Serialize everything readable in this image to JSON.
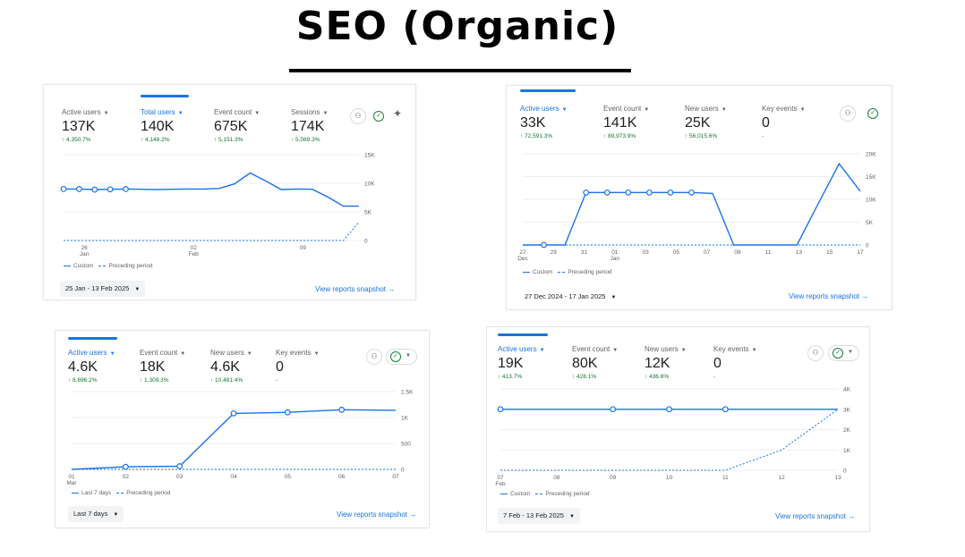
{
  "page": {
    "title": "SEO (Organic)"
  },
  "colors": {
    "accent": "#1a73e8",
    "positive": "#137333",
    "grid": "#e0e0e0"
  },
  "chart_data": [
    {
      "type": "line",
      "metrics": [
        {
          "label": "Active users",
          "value": "137K",
          "change": "↑ 4,350.7%"
        },
        {
          "label": "Total users",
          "value": "140K",
          "change": "↑ 4,148.2%"
        },
        {
          "label": "Event count",
          "value": "675K",
          "change": "↑ 5,151.3%"
        },
        {
          "label": "Sessions",
          "value": "174K",
          "change": "↑ 5,089.3%"
        }
      ],
      "active_metric": "Total users",
      "ylim": [
        0,
        15000
      ],
      "y_ticks": [
        "15K",
        "10K",
        "5K",
        "0"
      ],
      "x_ticks": [
        {
          "label": "26",
          "sub": "Jan"
        },
        {
          "label": "02",
          "sub": "Feb"
        },
        {
          "label": "09",
          "sub": ""
        }
      ],
      "series": [
        {
          "name": "Custom",
          "style": "solid",
          "values": [
            9000,
            9000,
            8900,
            8950,
            9000,
            8950,
            8900,
            8950,
            9000,
            9000,
            9100,
            9900,
            11800,
            10400,
            8900,
            9000,
            8950,
            7600,
            6000,
            6000
          ]
        },
        {
          "name": "Preceding period",
          "style": "dashed",
          "values": [
            0,
            0,
            0,
            0,
            0,
            0,
            0,
            0,
            0,
            0,
            0,
            0,
            0,
            0,
            0,
            0,
            0,
            0,
            0,
            3200
          ]
        }
      ],
      "markers": 5,
      "legend": [
        "Custom",
        "Preceding period"
      ],
      "date_range": "25 Jan - 13 Feb 2025",
      "snapshot_link": "View reports snapshot →"
    },
    {
      "type": "line",
      "metrics": [
        {
          "label": "Active users",
          "value": "33K",
          "change": "↑ 72,591.3%"
        },
        {
          "label": "Event count",
          "value": "141K",
          "change": "↑ 89,973.9%"
        },
        {
          "label": "New users",
          "value": "25K",
          "change": "↑ 56,015.6%"
        },
        {
          "label": "Key events",
          "value": "0",
          "change": "-"
        }
      ],
      "active_metric": "Active users",
      "ylim": [
        0,
        20000
      ],
      "y_ticks": [
        "20K",
        "15K",
        "10K",
        "5K",
        "0"
      ],
      "x_ticks": [
        {
          "label": "27",
          "sub": "Dec"
        },
        {
          "label": "29",
          "sub": ""
        },
        {
          "label": "31",
          "sub": ""
        },
        {
          "label": "01",
          "sub": "Jan"
        },
        {
          "label": "03",
          "sub": ""
        },
        {
          "label": "05",
          "sub": ""
        },
        {
          "label": "07",
          "sub": ""
        },
        {
          "label": "09",
          "sub": ""
        },
        {
          "label": "11",
          "sub": ""
        },
        {
          "label": "13",
          "sub": ""
        },
        {
          "label": "15",
          "sub": ""
        },
        {
          "label": "17",
          "sub": ""
        }
      ],
      "series": [
        {
          "name": "Custom",
          "style": "solid",
          "values": [
            0,
            0,
            0,
            11500,
            11500,
            11500,
            11500,
            11500,
            11500,
            11300,
            0,
            0,
            0,
            0,
            9000,
            17800,
            11800
          ]
        },
        {
          "name": "Preceding period",
          "style": "dashed",
          "values": [
            0,
            0,
            0,
            0,
            0,
            0,
            0,
            0,
            0,
            0,
            0,
            0,
            0,
            0,
            0,
            0,
            0
          ]
        }
      ],
      "marker_indices": [
        1,
        3,
        4,
        5,
        6,
        7,
        8
      ],
      "legend": [
        "Custom",
        "Preceding period"
      ],
      "date_range": "27 Dec 2024 - 17 Jan 2025",
      "snapshot_link": "View reports snapshot →"
    },
    {
      "type": "line",
      "metrics": [
        {
          "label": "Active users",
          "value": "4.6K",
          "change": "↑ 8,696.2%"
        },
        {
          "label": "Event count",
          "value": "18K",
          "change": "↑ 1,309.3%"
        },
        {
          "label": "New users",
          "value": "4.6K",
          "change": "↑ 10,481.4%"
        },
        {
          "label": "Key events",
          "value": "0",
          "change": "-"
        }
      ],
      "active_metric": "Active users",
      "ylim": [
        0,
        1500
      ],
      "y_ticks": [
        "1.5K",
        "1K",
        "500",
        "0"
      ],
      "x_ticks": [
        {
          "label": "01",
          "sub": "Mar"
        },
        {
          "label": "02",
          "sub": ""
        },
        {
          "label": "03",
          "sub": ""
        },
        {
          "label": "04",
          "sub": ""
        },
        {
          "label": "05",
          "sub": ""
        },
        {
          "label": "06",
          "sub": ""
        },
        {
          "label": "07",
          "sub": ""
        }
      ],
      "series": [
        {
          "name": "Last 7 days",
          "style": "solid",
          "values": [
            0,
            50,
            60,
            1080,
            1100,
            1150,
            1140
          ]
        },
        {
          "name": "Preceding period",
          "style": "dashed",
          "values": [
            0,
            0,
            0,
            0,
            0,
            0,
            0
          ]
        }
      ],
      "marker_indices": [
        1,
        2,
        3,
        4,
        5
      ],
      "legend": [
        "Last 7 days",
        "Preceding period"
      ],
      "date_range": "Last 7 days",
      "snapshot_link": "View reports snapshot →"
    },
    {
      "type": "line",
      "metrics": [
        {
          "label": "Active users",
          "value": "19K",
          "change": "↑ 413.7%"
        },
        {
          "label": "Event count",
          "value": "80K",
          "change": "↑ 428.1%"
        },
        {
          "label": "New users",
          "value": "12K",
          "change": "↑ 436.6%"
        },
        {
          "label": "Key events",
          "value": "0",
          "change": "-"
        }
      ],
      "active_metric": "Active users",
      "ylim": [
        0,
        4000
      ],
      "y_ticks": [
        "4K",
        "3K",
        "2K",
        "1K",
        "0"
      ],
      "x_ticks": [
        {
          "label": "07",
          "sub": "Feb"
        },
        {
          "label": "08",
          "sub": ""
        },
        {
          "label": "09",
          "sub": ""
        },
        {
          "label": "10",
          "sub": ""
        },
        {
          "label": "11",
          "sub": ""
        },
        {
          "label": "12",
          "sub": ""
        },
        {
          "label": "13",
          "sub": ""
        }
      ],
      "series": [
        {
          "name": "Custom",
          "style": "solid",
          "values": [
            3000,
            3000,
            3000,
            3000,
            3000,
            3000,
            3000
          ]
        },
        {
          "name": "Preceding period",
          "style": "dashed",
          "values": [
            0,
            0,
            0,
            0,
            0,
            1000,
            3000
          ]
        }
      ],
      "marker_indices": [
        0,
        2,
        3,
        4
      ],
      "legend": [
        "Custom",
        "Preceding period"
      ],
      "date_range": "7 Feb - 13 Feb 2025",
      "snapshot_link": "View reports snapshot →"
    }
  ]
}
